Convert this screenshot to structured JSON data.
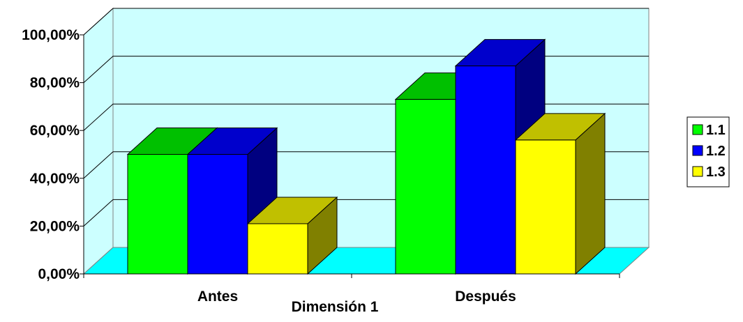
{
  "chart_data": {
    "type": "bar",
    "style": "3d-clustered-column",
    "title": "",
    "xlabel": "Dimensión 1",
    "ylabel": "",
    "categories": [
      "Antes",
      "Después"
    ],
    "series": [
      {
        "name": "1.1",
        "values": [
          0.5,
          0.73
        ]
      },
      {
        "name": "1.2",
        "values": [
          0.5,
          0.87
        ]
      },
      {
        "name": "1.3",
        "values": [
          0.21,
          0.56
        ]
      }
    ],
    "ylim": [
      0,
      1.0
    ],
    "yticks": [
      0,
      0.2,
      0.4,
      0.6,
      0.8,
      1.0
    ],
    "ytick_labels": [
      "0,00%",
      "20,00%",
      "40,00%",
      "60,00%",
      "80,00%",
      "100,00%"
    ],
    "grid": true,
    "legend_position": "right",
    "colors": {
      "series": [
        "#00ff00",
        "#0000ff",
        "#ffff00"
      ],
      "series_top": [
        "#00c000",
        "#0000cc",
        "#c0c000"
      ],
      "series_side": [
        "#008000",
        "#000080",
        "#808000"
      ],
      "wall": "#ccffff",
      "floor": "#00ffff",
      "grid": "#000000"
    }
  }
}
